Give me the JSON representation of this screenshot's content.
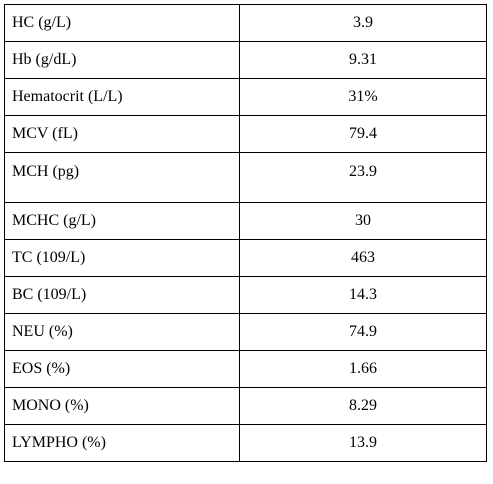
{
  "rows": [
    {
      "label": "HC (g/L)",
      "value": "3.9"
    },
    {
      "label": "Hb (g/dL)",
      "value": "9.31"
    },
    {
      "label": "Hematocrit (L/L)",
      "value": "31%"
    },
    {
      "label": "MCV (fL)",
      "value": "79.4"
    },
    {
      "label": "MCH (pg)",
      "value": "23.9"
    },
    {
      "label": "MCHC (g/L)",
      "value": "30"
    },
    {
      "label": "TC (109/L)",
      "value": "463"
    },
    {
      "label": "BC (109/L)",
      "value": "14.3"
    },
    {
      "label": "NEU (%)",
      "value": "74.9"
    },
    {
      "label": "EOS (%)",
      "value": "1.66"
    },
    {
      "label": "MONO (%)",
      "value": "8.29"
    },
    {
      "label": "LYMPHO (%)",
      "value": "13.9"
    }
  ]
}
